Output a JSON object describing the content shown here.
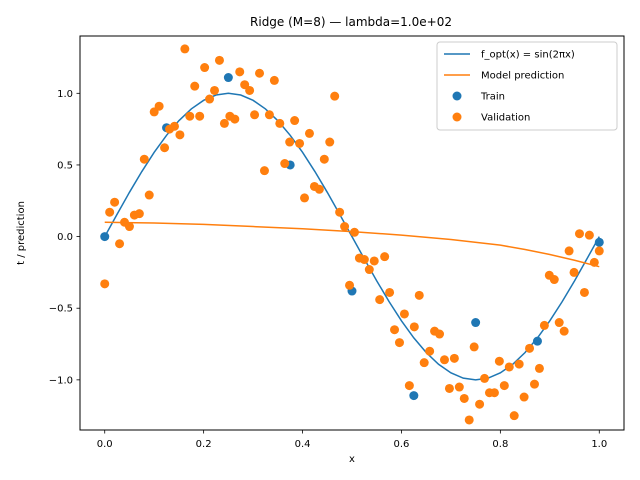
{
  "chart_data": {
    "type": "scatter",
    "title": "Ridge (M=8) — lambda=1.0e+02",
    "xlabel": "x",
    "ylabel": "t / prediction",
    "xlim": [
      -0.05,
      1.05
    ],
    "ylim": [
      -1.35,
      1.4
    ],
    "x_ticks": [
      0.0,
      0.2,
      0.4,
      0.6,
      0.8,
      1.0
    ],
    "x_tick_labels": [
      "0.0",
      "0.2",
      "0.4",
      "0.6",
      "0.8",
      "1.0"
    ],
    "y_ticks": [
      -1.0,
      -0.5,
      0.0,
      0.5,
      1.0
    ],
    "y_tick_labels": [
      "−1.0",
      "−0.5",
      "0.0",
      "0.5",
      "1.0"
    ],
    "grid": false,
    "legend_position": "top-right",
    "series": [
      {
        "name": "f_opt(x) = sin(2πx)",
        "kind": "line",
        "color": "#1f77b4",
        "x": [
          0.0,
          0.025,
          0.05,
          0.075,
          0.1,
          0.125,
          0.15,
          0.175,
          0.2,
          0.225,
          0.25,
          0.275,
          0.3,
          0.325,
          0.35,
          0.375,
          0.4,
          0.425,
          0.45,
          0.475,
          0.5,
          0.525,
          0.55,
          0.575,
          0.6,
          0.625,
          0.65,
          0.675,
          0.7,
          0.725,
          0.75,
          0.775,
          0.8,
          0.825,
          0.85,
          0.875,
          0.9,
          0.925,
          0.95,
          0.975,
          1.0
        ],
        "y": [
          0.0,
          0.156,
          0.309,
          0.454,
          0.588,
          0.707,
          0.809,
          0.891,
          0.951,
          0.988,
          1.0,
          0.988,
          0.951,
          0.891,
          0.809,
          0.707,
          0.588,
          0.454,
          0.309,
          0.156,
          0.0,
          -0.156,
          -0.309,
          -0.454,
          -0.588,
          -0.707,
          -0.809,
          -0.891,
          -0.951,
          -0.988,
          -1.0,
          -0.988,
          -0.951,
          -0.891,
          -0.809,
          -0.707,
          -0.588,
          -0.454,
          -0.309,
          -0.156,
          0.0
        ]
      },
      {
        "name": "Model prediction",
        "kind": "line",
        "color": "#ff7f0e",
        "x": [
          0.0,
          0.1,
          0.2,
          0.3,
          0.4,
          0.5,
          0.6,
          0.7,
          0.8,
          0.85,
          0.9,
          0.95,
          1.0
        ],
        "y": [
          0.1,
          0.095,
          0.085,
          0.07,
          0.055,
          0.035,
          0.01,
          -0.02,
          -0.06,
          -0.09,
          -0.125,
          -0.165,
          -0.21
        ]
      },
      {
        "name": "Train",
        "kind": "scatter",
        "color": "#1f77b4",
        "x": [
          0.0,
          0.125,
          0.25,
          0.375,
          0.5,
          0.625,
          0.75,
          0.875,
          1.0
        ],
        "y": [
          0.0,
          0.76,
          1.11,
          0.5,
          -0.38,
          -1.11,
          -0.6,
          -0.73,
          -0.04
        ]
      },
      {
        "name": "Validation",
        "kind": "scatter",
        "color": "#ff7f0e",
        "x": [
          0.0,
          0.01,
          0.02,
          0.03,
          0.04,
          0.05,
          0.06,
          0.07,
          0.08,
          0.09,
          0.1,
          0.11,
          0.121,
          0.131,
          0.141,
          0.152,
          0.162,
          0.172,
          0.182,
          0.192,
          0.202,
          0.212,
          0.222,
          0.232,
          0.242,
          0.253,
          0.263,
          0.273,
          0.283,
          0.293,
          0.303,
          0.313,
          0.323,
          0.333,
          0.343,
          0.354,
          0.364,
          0.374,
          0.384,
          0.394,
          0.404,
          0.414,
          0.424,
          0.434,
          0.444,
          0.455,
          0.465,
          0.475,
          0.485,
          0.495,
          0.505,
          0.515,
          0.525,
          0.535,
          0.545,
          0.556,
          0.566,
          0.576,
          0.586,
          0.596,
          0.606,
          0.616,
          0.626,
          0.636,
          0.646,
          0.657,
          0.667,
          0.677,
          0.687,
          0.697,
          0.707,
          0.717,
          0.727,
          0.737,
          0.747,
          0.758,
          0.768,
          0.778,
          0.788,
          0.798,
          0.808,
          0.818,
          0.828,
          0.838,
          0.848,
          0.859,
          0.869,
          0.879,
          0.889,
          0.899,
          0.909,
          0.919,
          0.929,
          0.939,
          0.949,
          0.96,
          0.97,
          0.98,
          0.99,
          1.0
        ],
        "y": [
          -0.33,
          0.17,
          0.24,
          -0.05,
          0.1,
          0.07,
          0.15,
          0.16,
          0.54,
          0.29,
          0.87,
          0.91,
          0.62,
          0.75,
          0.77,
          0.71,
          1.31,
          0.84,
          1.05,
          0.84,
          1.18,
          0.96,
          1.02,
          1.23,
          0.79,
          0.84,
          0.82,
          1.15,
          1.06,
          1.02,
          0.85,
          1.14,
          0.46,
          0.85,
          1.09,
          0.79,
          0.51,
          0.66,
          0.81,
          0.65,
          0.27,
          0.72,
          0.35,
          0.33,
          0.54,
          0.66,
          0.98,
          0.17,
          0.07,
          -0.34,
          0.03,
          -0.15,
          -0.16,
          -0.23,
          -0.17,
          -0.44,
          -0.14,
          -0.39,
          -0.65,
          -0.74,
          -0.54,
          -1.04,
          -0.63,
          -0.41,
          -0.88,
          -0.8,
          -0.66,
          -0.68,
          -0.86,
          -1.06,
          -0.85,
          -1.05,
          -1.13,
          -1.28,
          -0.77,
          -1.17,
          -0.99,
          -1.09,
          -1.09,
          -0.87,
          -1.04,
          -0.91,
          -1.25,
          -0.89,
          -1.12,
          -0.78,
          -1.03,
          -0.92,
          -0.62,
          -0.27,
          -0.3,
          -0.6,
          -0.66,
          -0.1,
          -0.25,
          0.02,
          -0.39,
          0.01,
          -0.18,
          -0.1
        ]
      }
    ]
  }
}
